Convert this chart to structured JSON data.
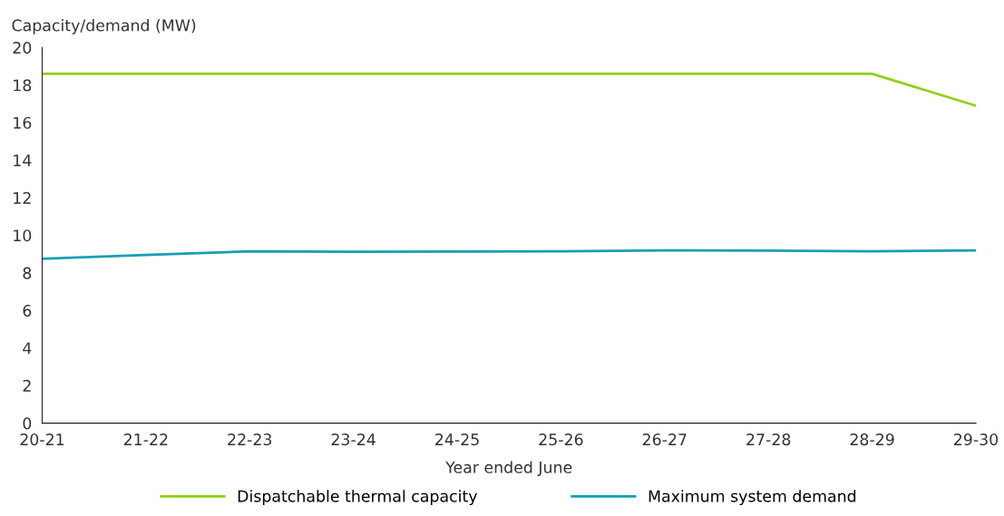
{
  "chart_data": {
    "type": "line",
    "xlabel": "Year ended June",
    "ylabel": "Capacity/demand (MW)",
    "categories": [
      "20-21",
      "21-22",
      "22-23",
      "23-24",
      "24-25",
      "25-26",
      "26-27",
      "27-28",
      "28-29",
      "29-30"
    ],
    "series": [
      {
        "name": "Dispatchable thermal capacity",
        "color": "#8fd11a",
        "values": [
          18.6,
          18.6,
          18.6,
          18.6,
          18.6,
          18.6,
          18.6,
          18.6,
          18.6,
          16.9
        ]
      },
      {
        "name": "Maximum system demand",
        "color": "#149fb5",
        "values": [
          8.75,
          8.95,
          9.15,
          9.12,
          9.13,
          9.15,
          9.2,
          9.18,
          9.15,
          9.2
        ]
      }
    ],
    "ylim": [
      0,
      20
    ],
    "yticks": [
      0,
      2,
      4,
      6,
      8,
      10,
      12,
      14,
      16,
      18,
      20
    ],
    "grid": false,
    "legend": "bottom",
    "marker": "none",
    "line_style": "solid"
  }
}
